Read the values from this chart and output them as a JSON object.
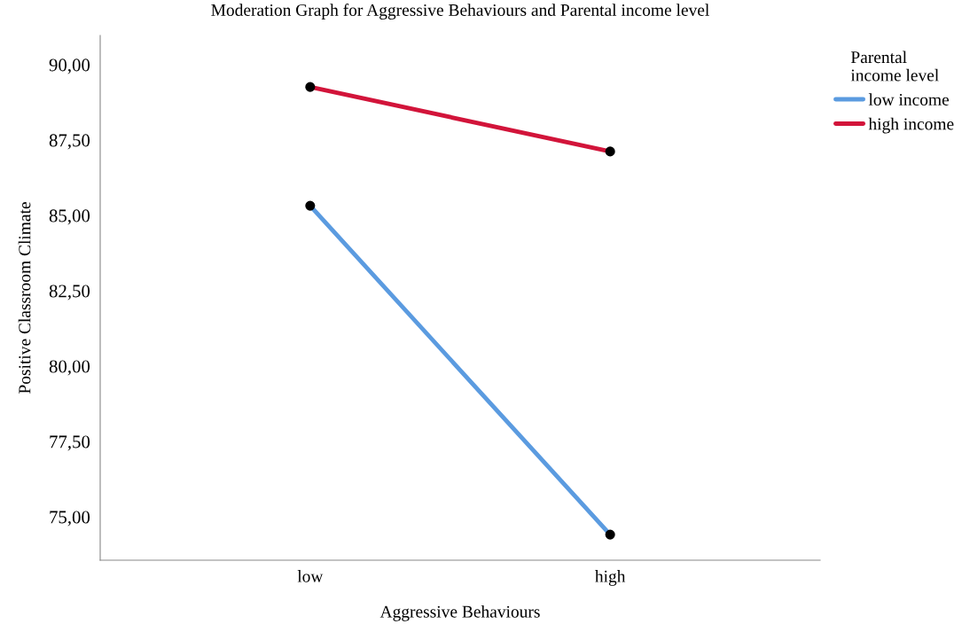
{
  "chart_data": {
    "type": "line",
    "title": "Moderation Graph for Aggressive Behaviours and Parental income level",
    "xlabel": "Aggressive Behaviours",
    "ylabel": "Positive Classroom Climate",
    "legend_title": "Parental\nincome level",
    "categories": [
      "low",
      "high"
    ],
    "series": [
      {
        "name": "low income",
        "color": "#5b9be0",
        "values": [
          85.32,
          74.41
        ]
      },
      {
        "name": "high income",
        "color": "#d2143a",
        "values": [
          89.26,
          87.12
        ]
      }
    ],
    "ylim": [
      73.56,
      90.97
    ],
    "yticks": [
      {
        "value": 75,
        "label": "75,00"
      },
      {
        "value": 77.5,
        "label": "77,50"
      },
      {
        "value": 80,
        "label": "80,00"
      },
      {
        "value": 82.5,
        "label": "82,50"
      },
      {
        "value": 85,
        "label": "85,00"
      },
      {
        "value": 87.5,
        "label": "87,50"
      },
      {
        "value": 90,
        "label": "90,00"
      }
    ],
    "grid": false,
    "legend": "top right",
    "marker": "circle",
    "line_style": "solid"
  }
}
